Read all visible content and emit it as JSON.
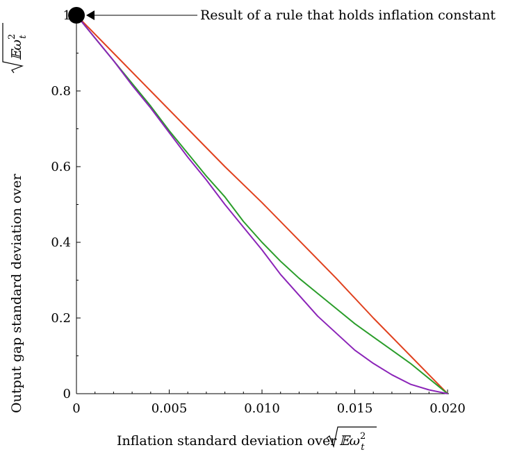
{
  "chart_data": {
    "type": "line",
    "xlabel_prefix": "Inflation standard deviation over",
    "ylabel_prefix": "Output gap standard deviation over",
    "radical_expr": "𝔼ω",
    "radical_sup": "2",
    "radical_sub": "t",
    "xlim": [
      0,
      0.02
    ],
    "ylim": [
      0,
      1
    ],
    "x_tick_labels": [
      {
        "value": 0,
        "label": "0"
      },
      {
        "value": 0.005,
        "label": "0.005"
      },
      {
        "value": 0.01,
        "label": "0.010"
      },
      {
        "value": 0.015,
        "label": "0.015"
      },
      {
        "value": 0.02,
        "label": "0.020"
      }
    ],
    "y_tick_labels": [
      {
        "value": 0,
        "label": "0"
      },
      {
        "value": 0.2,
        "label": "0.2"
      },
      {
        "value": 0.4,
        "label": "0.4"
      },
      {
        "value": 0.6,
        "label": "0.6"
      },
      {
        "value": 0.8,
        "label": "0.8"
      },
      {
        "value": 1,
        "label": "1"
      }
    ],
    "grid": false,
    "series": [
      {
        "color": "#e0411e",
        "x": [
          0,
          0.002,
          0.004,
          0.006,
          0.008,
          0.01,
          0.012,
          0.014,
          0.016,
          0.018,
          0.019,
          0.02
        ],
        "y": [
          1,
          0.9,
          0.8,
          0.7,
          0.6,
          0.505,
          0.405,
          0.305,
          0.2,
          0.1,
          0.05,
          0
        ]
      },
      {
        "color": "#2a9d2a",
        "x": [
          0,
          0.001,
          0.002,
          0.003,
          0.004,
          0.005,
          0.006,
          0.007,
          0.008,
          0.009,
          0.01,
          0.011,
          0.012,
          0.013,
          0.014,
          0.015,
          0.016,
          0.017,
          0.018,
          0.019,
          0.02
        ],
        "y": [
          1,
          0.94,
          0.88,
          0.82,
          0.76,
          0.695,
          0.635,
          0.575,
          0.52,
          0.455,
          0.4,
          0.35,
          0.305,
          0.265,
          0.225,
          0.185,
          0.15,
          0.115,
          0.08,
          0.04,
          0
        ]
      },
      {
        "color": "#8b24b8",
        "x": [
          0,
          0.001,
          0.002,
          0.003,
          0.004,
          0.005,
          0.006,
          0.007,
          0.008,
          0.009,
          0.01,
          0.011,
          0.012,
          0.013,
          0.014,
          0.015,
          0.016,
          0.017,
          0.018,
          0.019,
          0.02
        ],
        "y": [
          1,
          0.94,
          0.88,
          0.815,
          0.755,
          0.69,
          0.625,
          0.565,
          0.5,
          0.44,
          0.38,
          0.315,
          0.26,
          0.205,
          0.16,
          0.115,
          0.08,
          0.05,
          0.025,
          0.01,
          0
        ]
      }
    ],
    "marker": {
      "x": 0,
      "y": 1,
      "color": "#000000"
    },
    "annotation": {
      "text": "Result of a rule that holds inflation constant",
      "x": 0,
      "y": 1
    }
  }
}
